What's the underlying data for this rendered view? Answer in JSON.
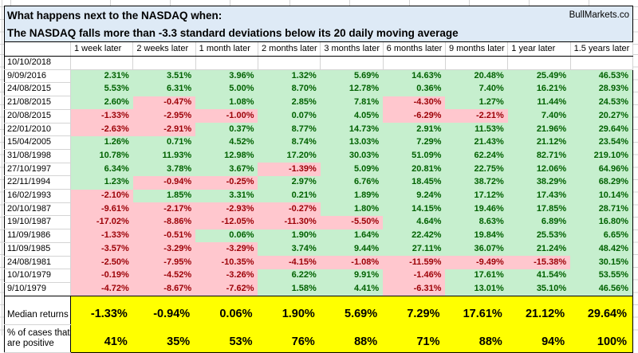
{
  "meta": {
    "watermark": "BullMarkets.co"
  },
  "title": {
    "line1": "What happens next to the NASDAQ when:",
    "line2": "The NASDAQ falls more than -3.3 standard deviations below its 20 daily moving average"
  },
  "colors": {
    "title_bg": "#DEEAF6",
    "positive_bg": "#C6EFCE",
    "positive_text": "#006100",
    "negative_bg": "#FFC7CE",
    "negative_text": "#9C0006",
    "summary_bg": "#FFFF00"
  },
  "table": {
    "column_headers": [
      "1 week later",
      "2 weeks later",
      "1 month later",
      "2 months later",
      "3 months later",
      "6 months later",
      "9 months later",
      "1 year later",
      "1.5 years later"
    ],
    "rows": [
      {
        "date": "10/10/2018",
        "values": [
          "",
          "",
          "",
          "",
          "",
          "",
          "",
          "",
          ""
        ]
      },
      {
        "date": "9/09/2016",
        "values": [
          "2.31%",
          "3.51%",
          "3.96%",
          "1.32%",
          "5.69%",
          "14.63%",
          "20.48%",
          "25.49%",
          "46.53%"
        ]
      },
      {
        "date": "24/08/2015",
        "values": [
          "5.53%",
          "6.31%",
          "5.00%",
          "8.70%",
          "12.78%",
          "0.36%",
          "7.40%",
          "16.21%",
          "28.93%"
        ]
      },
      {
        "date": "21/08/2015",
        "values": [
          "2.60%",
          "-0.47%",
          "1.08%",
          "2.85%",
          "7.81%",
          "-4.30%",
          "1.27%",
          "11.44%",
          "24.53%"
        ]
      },
      {
        "date": "20/08/2015",
        "values": [
          "-1.33%",
          "-2.95%",
          "-1.00%",
          "0.07%",
          "4.05%",
          "-6.29%",
          "-2.21%",
          "7.40%",
          "20.27%"
        ]
      },
      {
        "date": "22/01/2010",
        "values": [
          "-2.63%",
          "-2.91%",
          "0.37%",
          "8.77%",
          "14.73%",
          "2.91%",
          "11.53%",
          "21.96%",
          "29.64%"
        ]
      },
      {
        "date": "15/04/2005",
        "values": [
          "1.26%",
          "0.71%",
          "4.52%",
          "8.74%",
          "13.03%",
          "7.29%",
          "21.43%",
          "21.12%",
          "23.54%"
        ]
      },
      {
        "date": "31/08/1998",
        "values": [
          "10.78%",
          "11.93%",
          "12.98%",
          "17.20%",
          "30.03%",
          "51.09%",
          "62.24%",
          "82.71%",
          "219.10%"
        ]
      },
      {
        "date": "27/10/1997",
        "values": [
          "6.34%",
          "3.78%",
          "3.67%",
          "-1.39%",
          "5.09%",
          "20.81%",
          "22.75%",
          "12.06%",
          "64.96%"
        ]
      },
      {
        "date": "22/11/1994",
        "values": [
          "1.23%",
          "-0.94%",
          "-0.25%",
          "2.97%",
          "6.76%",
          "18.45%",
          "38.72%",
          "38.29%",
          "68.29%"
        ]
      },
      {
        "date": "16/02/1993",
        "values": [
          "-2.10%",
          "1.85%",
          "3.31%",
          "0.21%",
          "1.89%",
          "9.24%",
          "17.12%",
          "17.43%",
          "10.14%"
        ]
      },
      {
        "date": "20/10/1987",
        "values": [
          "-9.61%",
          "-2.17%",
          "-2.93%",
          "-0.27%",
          "1.80%",
          "14.15%",
          "19.46%",
          "17.85%",
          "28.71%"
        ]
      },
      {
        "date": "19/10/1987",
        "values": [
          "-17.02%",
          "-8.86%",
          "-12.05%",
          "-11.30%",
          "-5.50%",
          "4.64%",
          "8.63%",
          "6.89%",
          "16.80%"
        ]
      },
      {
        "date": "11/09/1986",
        "values": [
          "-1.33%",
          "-0.51%",
          "0.06%",
          "1.90%",
          "1.64%",
          "22.42%",
          "19.84%",
          "25.53%",
          "6.65%"
        ]
      },
      {
        "date": "11/09/1985",
        "values": [
          "-3.57%",
          "-3.29%",
          "-3.29%",
          "3.74%",
          "9.44%",
          "27.11%",
          "36.07%",
          "21.24%",
          "48.42%"
        ]
      },
      {
        "date": "24/08/1981",
        "values": [
          "-2.50%",
          "-7.95%",
          "-10.35%",
          "-4.15%",
          "-1.08%",
          "-11.59%",
          "-9.49%",
          "-15.38%",
          "30.15%"
        ]
      },
      {
        "date": "10/10/1979",
        "values": [
          "-0.19%",
          "-4.52%",
          "-3.26%",
          "6.22%",
          "9.91%",
          "-1.46%",
          "17.61%",
          "41.54%",
          "53.55%"
        ]
      },
      {
        "date": "9/10/1979",
        "values": [
          "-4.72%",
          "-8.67%",
          "-7.62%",
          "1.58%",
          "4.41%",
          "-6.31%",
          "13.01%",
          "35.10%",
          "46.56%"
        ]
      }
    ],
    "summary": {
      "median_label": "Median returns",
      "median_values": [
        "-1.33%",
        "-0.94%",
        "0.06%",
        "1.90%",
        "5.69%",
        "7.29%",
        "17.61%",
        "21.12%",
        "29.64%"
      ],
      "pct_label": "% of cases that\nare positive",
      "pct_values": [
        "41%",
        "35%",
        "53%",
        "76%",
        "88%",
        "71%",
        "88%",
        "94%",
        "100%"
      ]
    }
  }
}
